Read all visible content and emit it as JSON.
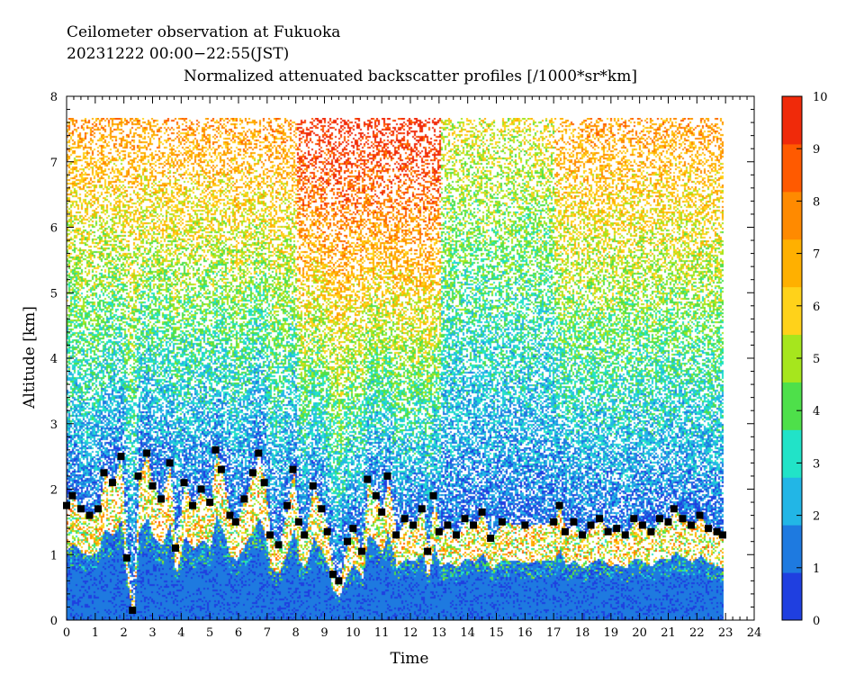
{
  "chart_data": {
    "type": "heatmap",
    "title_line1": "Ceilometer observation at Fukuoka",
    "title_line2": "20231222  00:00−22:55(JST)",
    "title_line3": "Normalized attenuated backscatter profiles [/1000*sr*km]",
    "xlabel": "Time",
    "ylabel": "Altitude [km]",
    "xlim": [
      0,
      24
    ],
    "ylim": [
      0,
      8
    ],
    "data_time_range": [
      0,
      22.92
    ],
    "data_altitude_top": 7.67,
    "x_ticks": [
      "0",
      "1",
      "2",
      "3",
      "4",
      "5",
      "6",
      "7",
      "8",
      "9",
      "10",
      "11",
      "12",
      "13",
      "14",
      "15",
      "16",
      "17",
      "18",
      "19",
      "20",
      "21",
      "22",
      "23",
      "24"
    ],
    "y_ticks": [
      "0",
      "1",
      "2",
      "3",
      "4",
      "5",
      "6",
      "7",
      "8"
    ],
    "colorbar": {
      "range": [
        0,
        10
      ],
      "ticks": [
        "0",
        "1",
        "2",
        "3",
        "4",
        "5",
        "6",
        "7",
        "8",
        "9",
        "10"
      ],
      "colors": [
        "#1f3fe0",
        "#1e7ae0",
        "#22b6e6",
        "#21e3c8",
        "#4ee04a",
        "#a6e61d",
        "#ffd21a",
        "#ffb000",
        "#ff8a00",
        "#ff5a00",
        "#f02a0a"
      ]
    },
    "cloud_base_km": [
      {
        "x": 0.0,
        "y": 1.75
      },
      {
        "x": 0.2,
        "y": 1.9
      },
      {
        "x": 0.5,
        "y": 1.7
      },
      {
        "x": 0.8,
        "y": 1.6
      },
      {
        "x": 1.1,
        "y": 1.7
      },
      {
        "x": 1.3,
        "y": 2.25
      },
      {
        "x": 1.6,
        "y": 2.1
      },
      {
        "x": 1.9,
        "y": 2.5
      },
      {
        "x": 2.1,
        "y": 0.95
      },
      {
        "x": 2.3,
        "y": 0.15
      },
      {
        "x": 2.5,
        "y": 2.2
      },
      {
        "x": 2.8,
        "y": 2.55
      },
      {
        "x": 3.0,
        "y": 2.05
      },
      {
        "x": 3.3,
        "y": 1.85
      },
      {
        "x": 3.6,
        "y": 2.4
      },
      {
        "x": 3.8,
        "y": 1.1
      },
      {
        "x": 4.1,
        "y": 2.1
      },
      {
        "x": 4.4,
        "y": 1.75
      },
      {
        "x": 4.7,
        "y": 2.0
      },
      {
        "x": 5.0,
        "y": 1.8
      },
      {
        "x": 5.2,
        "y": 2.6
      },
      {
        "x": 5.4,
        "y": 2.3
      },
      {
        "x": 5.7,
        "y": 1.6
      },
      {
        "x": 5.9,
        "y": 1.5
      },
      {
        "x": 6.2,
        "y": 1.85
      },
      {
        "x": 6.5,
        "y": 2.25
      },
      {
        "x": 6.7,
        "y": 2.55
      },
      {
        "x": 6.9,
        "y": 2.1
      },
      {
        "x": 7.1,
        "y": 1.3
      },
      {
        "x": 7.4,
        "y": 1.15
      },
      {
        "x": 7.7,
        "y": 1.75
      },
      {
        "x": 7.9,
        "y": 2.3
      },
      {
        "x": 8.1,
        "y": 1.5
      },
      {
        "x": 8.3,
        "y": 1.3
      },
      {
        "x": 8.6,
        "y": 2.05
      },
      {
        "x": 8.9,
        "y": 1.7
      },
      {
        "x": 9.1,
        "y": 1.35
      },
      {
        "x": 9.3,
        "y": 0.7
      },
      {
        "x": 9.5,
        "y": 0.6
      },
      {
        "x": 9.8,
        "y": 1.2
      },
      {
        "x": 10.0,
        "y": 1.4
      },
      {
        "x": 10.3,
        "y": 1.05
      },
      {
        "x": 10.5,
        "y": 2.15
      },
      {
        "x": 10.8,
        "y": 1.9
      },
      {
        "x": 11.0,
        "y": 1.65
      },
      {
        "x": 11.2,
        "y": 2.2
      },
      {
        "x": 11.5,
        "y": 1.3
      },
      {
        "x": 11.8,
        "y": 1.55
      },
      {
        "x": 12.1,
        "y": 1.45
      },
      {
        "x": 12.4,
        "y": 1.7
      },
      {
        "x": 12.6,
        "y": 1.05
      },
      {
        "x": 12.8,
        "y": 1.9
      },
      {
        "x": 13.0,
        "y": 1.35
      },
      {
        "x": 13.3,
        "y": 1.45
      },
      {
        "x": 13.6,
        "y": 1.3
      },
      {
        "x": 13.9,
        "y": 1.55
      },
      {
        "x": 14.2,
        "y": 1.45
      },
      {
        "x": 14.5,
        "y": 1.65
      },
      {
        "x": 14.8,
        "y": 1.25
      },
      {
        "x": 15.2,
        "y": 1.5
      },
      {
        "x": 16.0,
        "y": 1.45
      },
      {
        "x": 17.0,
        "y": 1.5
      },
      {
        "x": 17.2,
        "y": 1.75
      },
      {
        "x": 17.4,
        "y": 1.35
      },
      {
        "x": 17.7,
        "y": 1.5
      },
      {
        "x": 18.0,
        "y": 1.3
      },
      {
        "x": 18.3,
        "y": 1.45
      },
      {
        "x": 18.6,
        "y": 1.55
      },
      {
        "x": 18.9,
        "y": 1.35
      },
      {
        "x": 19.2,
        "y": 1.4
      },
      {
        "x": 19.5,
        "y": 1.3
      },
      {
        "x": 19.8,
        "y": 1.55
      },
      {
        "x": 20.1,
        "y": 1.45
      },
      {
        "x": 20.4,
        "y": 1.35
      },
      {
        "x": 20.7,
        "y": 1.55
      },
      {
        "x": 21.0,
        "y": 1.5
      },
      {
        "x": 21.2,
        "y": 1.7
      },
      {
        "x": 21.5,
        "y": 1.55
      },
      {
        "x": 21.8,
        "y": 1.45
      },
      {
        "x": 22.1,
        "y": 1.6
      },
      {
        "x": 22.4,
        "y": 1.4
      },
      {
        "x": 22.7,
        "y": 1.35
      },
      {
        "x": 22.9,
        "y": 1.3
      }
    ]
  }
}
